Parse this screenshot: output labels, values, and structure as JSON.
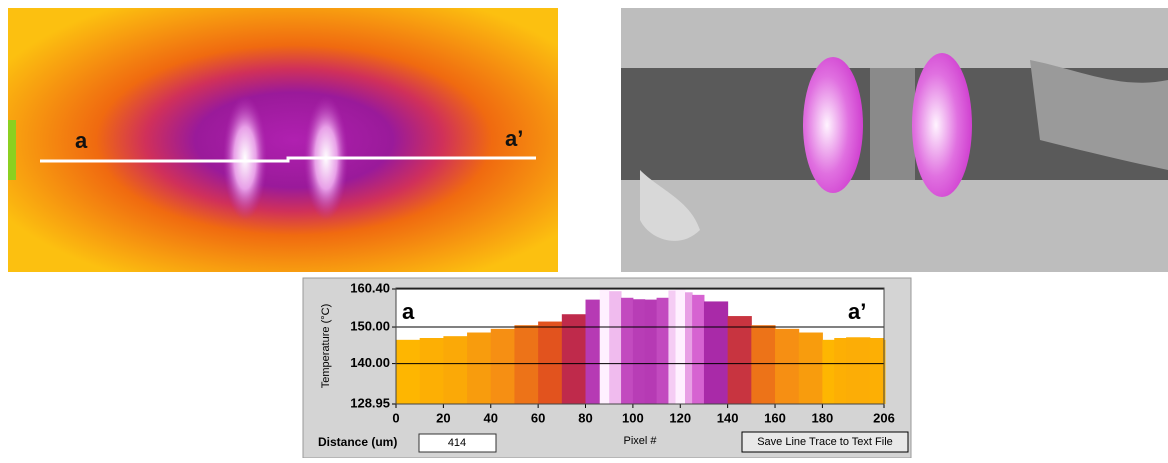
{
  "thermal_image": {
    "labels": [
      "a",
      "a’"
    ]
  },
  "chart_data": {
    "type": "area",
    "xlabel": "Pixel #",
    "ylabel": "Temperature (°C)",
    "annotations": [
      "a",
      "a’"
    ],
    "x": [
      0,
      10,
      20,
      30,
      40,
      50,
      60,
      70,
      80,
      86,
      90,
      95,
      100,
      105,
      110,
      115,
      118,
      122,
      125,
      130,
      140,
      150,
      160,
      170,
      180,
      185,
      190,
      200,
      206
    ],
    "values": [
      146.5,
      147,
      147.5,
      148.5,
      149.5,
      150.5,
      151.5,
      153.5,
      157.5,
      160.4,
      159.8,
      158,
      157.6,
      157.5,
      158,
      160,
      160.4,
      159.5,
      158.8,
      157,
      153,
      150.5,
      149.5,
      148.5,
      146.5,
      147,
      147.2,
      147,
      146.5
    ],
    "xlim": [
      0,
      206
    ],
    "ylim": [
      128.95,
      160.4
    ],
    "xticks": [
      0,
      20,
      40,
      60,
      80,
      100,
      120,
      140,
      160,
      180,
      206
    ],
    "yticks": [
      128.95,
      {
        "value": 140,
        "label": "140.00"
      },
      {
        "value": 150,
        "label": "150.00"
      },
      {
        "value": 160.4,
        "label": "160.40"
      }
    ],
    "grid": true
  },
  "controls": {
    "distance_label": "Distance (um)",
    "distance_value": "414",
    "button": "Save Line Trace to Text File"
  }
}
